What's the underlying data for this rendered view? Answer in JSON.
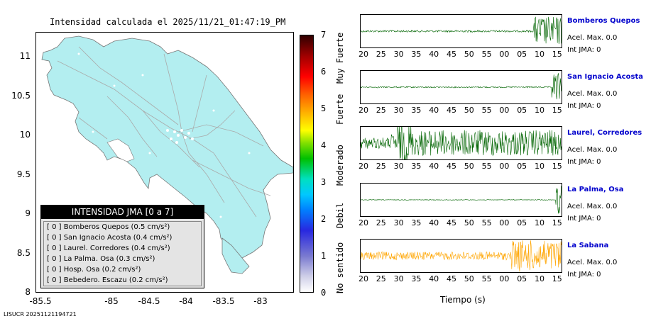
{
  "map": {
    "title": "Intensidad calculada el 2025/11/21_01:47:19_PM",
    "y_ticks": [
      "11",
      "10.5",
      "10",
      "9.5",
      "9",
      "8.5",
      "8"
    ],
    "x_ticks": [
      "-85.5",
      "-85",
      "-84.5",
      "-84",
      "-83.5",
      "-83"
    ],
    "land_color": "#b3eef0",
    "station_dots": 0
  },
  "legend": {
    "header": "INTENSIDAD JMA [0 a 7]",
    "rows": [
      {
        "text": "[ 0 ]  Bomberos Quepos (0.5 cm/s²)"
      },
      {
        "text": "[ 0 ]  San Ignacio Acosta (0.4 cm/s²)"
      },
      {
        "text": "[ 0 ]  Laurel. Corredores (0.4 cm/s²)"
      },
      {
        "text": "[ 0 ]  La Palma. Osa (0.3 cm/s²)"
      },
      {
        "text": "[ 0 ]  Hosp. Osa (0.2 cm/s²)"
      },
      {
        "text": "[ 0 ]  Bebedero. Escazu (0.2 cm/s²)"
      }
    ]
  },
  "colorbar": {
    "ticks": [
      "7",
      "6",
      "5",
      "4",
      "3",
      "2",
      "1",
      "0"
    ],
    "labels": [
      "Muy Fuerte",
      "Fuerte",
      "Moderado",
      "Debil",
      "No sentido"
    ]
  },
  "traces": {
    "x_ticks": [
      "20",
      "25",
      "30",
      "35",
      "40",
      "45",
      "50",
      "55",
      "00",
      "05",
      "10",
      "15"
    ],
    "xlabel": "Tiempo (s)",
    "stations": [
      {
        "name": "Bomberos Quepos",
        "acel": "Acel. Max. 0.0",
        "int": "Int JMA: 0",
        "color": "#006400"
      },
      {
        "name": "San Ignacio Acosta",
        "acel": "Acel. Max. 0.0",
        "int": "Int JMA: 0",
        "color": "#006400"
      },
      {
        "name": "Laurel, Corredores",
        "acel": "Acel. Max. 0.0",
        "int": "Int JMA: 0",
        "color": "#006400"
      },
      {
        "name": "La Palma, Osa",
        "acel": "Acel. Max. 0.0",
        "int": "Int JMA: 0",
        "color": "#006400"
      },
      {
        "name": "La Sabana",
        "acel": "Acel. Max. 0.0",
        "int": "Int JMA: 0",
        "color": "#ffa500"
      }
    ]
  },
  "footer": "LISUCR 20251121194721"
}
